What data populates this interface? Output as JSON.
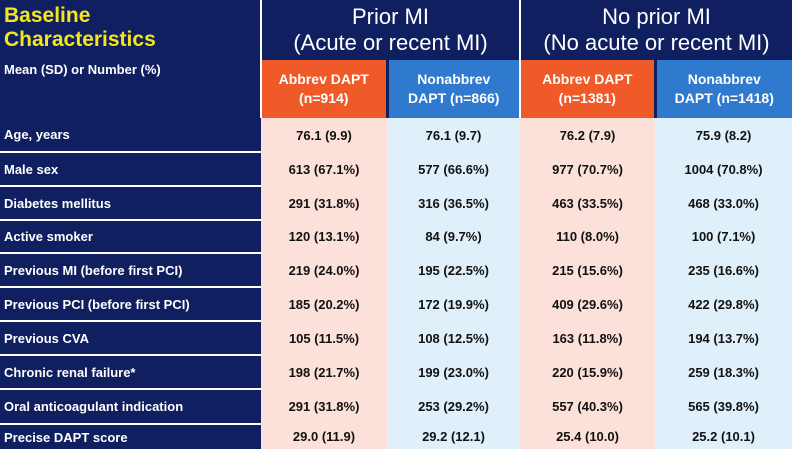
{
  "header": {
    "title_line1": "Baseline",
    "title_line2": "Characteristics",
    "subtitle": "Mean (SD)  or  Number (%)",
    "group_prior": {
      "line1": "Prior MI",
      "line2": "(Acute or recent MI)"
    },
    "group_no_prior": {
      "line1": "No prior MI",
      "line2": "(No acute or recent MI)"
    },
    "columns": [
      {
        "line1": "Abbrev DAPT",
        "line2": "(n=914)"
      },
      {
        "line1": "Nonabbrev",
        "line2": "DAPT (n=866)"
      },
      {
        "line1": "Abbrev DAPT",
        "line2": "(n=1381)"
      },
      {
        "line1": "Nonabbrev",
        "line2": "DAPT (n=1418)"
      }
    ]
  },
  "rows": [
    {
      "label": "Age, years",
      "values": [
        "76.1 (9.9)",
        "76.1 (9.7)",
        "76.2 (7.9)",
        "75.9 (8.2)"
      ]
    },
    {
      "label": "Male sex",
      "values": [
        "613 (67.1%)",
        "577 (66.6%)",
        "977 (70.7%)",
        "1004 (70.8%)"
      ]
    },
    {
      "label": "Diabetes mellitus",
      "values": [
        "291 (31.8%)",
        "316 (36.5%)",
        "463 (33.5%)",
        "468 (33.0%)"
      ]
    },
    {
      "label": "Active smoker",
      "values": [
        "120 (13.1%)",
        "84 (9.7%)",
        "110 (8.0%)",
        "100 (7.1%)"
      ]
    },
    {
      "label": "Previous MI (before first PCI)",
      "values": [
        "219 (24.0%)",
        "195 (22.5%)",
        "215 (15.6%)",
        "235 (16.6%)"
      ]
    },
    {
      "label": "Previous PCI (before first PCI)",
      "values": [
        "185 (20.2%)",
        "172 (19.9%)",
        "409 (29.6%)",
        "422 (29.8%)"
      ]
    },
    {
      "label": "Previous CVA",
      "values": [
        "105 (11.5%)",
        "108 (12.5%)",
        "163 (11.8%)",
        "194 (13.7%)"
      ]
    },
    {
      "label": "Chronic renal failure*",
      "values": [
        "198 (21.7%)",
        "199 (23.0%)",
        "220 (15.9%)",
        "259 (18.3%)"
      ]
    },
    {
      "label": "Oral anticoagulant indication",
      "values": [
        "291 (31.8%)",
        "253 (29.2%)",
        "557 (40.3%)",
        "565 (39.8%)"
      ]
    },
    {
      "label": "Precise DAPT score",
      "values": [
        "29.0 (11.9)",
        "29.2 (12.1)",
        "25.4 (10.0)",
        "25.2 (10.1)"
      ]
    }
  ],
  "colors": {
    "background": "#0f1f5f",
    "title": "#f4e61a",
    "abbrev_header": "#ef5a28",
    "nonabbrev_header": "#2f79cf",
    "abbrev_cell": "#fbe1da",
    "nonabbrev_cell": "#dff0fa"
  }
}
